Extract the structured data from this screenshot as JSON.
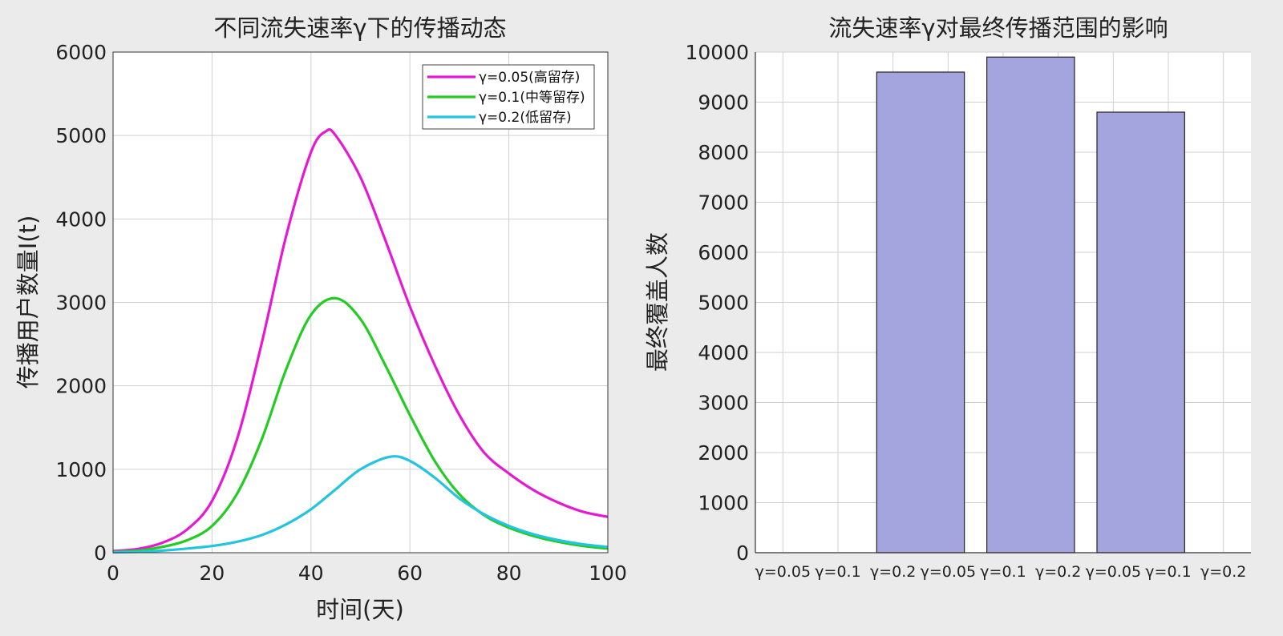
{
  "chart_data": [
    {
      "type": "line",
      "title": "不同流失速率γ下的传播动态",
      "xlabel": "时间(天)",
      "ylabel": "传播用户数量I(t)",
      "xlim": [
        0,
        100
      ],
      "ylim": [
        0,
        6000
      ],
      "xticks": [
        "0",
        "20",
        "40",
        "60",
        "80",
        "100"
      ],
      "yticks": [
        "0",
        "1000",
        "2000",
        "3000",
        "4000",
        "5000",
        "6000"
      ],
      "grid": true,
      "legend_position": "top-right",
      "series": [
        {
          "name": "γ=0.05(高留存)",
          "color": "#e619d2",
          "x": [
            0,
            5,
            10,
            15,
            20,
            25,
            30,
            35,
            40,
            43,
            45,
            50,
            55,
            60,
            65,
            70,
            75,
            80,
            85,
            90,
            95,
            100
          ],
          "y": [
            20,
            45,
            120,
            280,
            620,
            1350,
            2500,
            3800,
            4800,
            5050,
            5000,
            4500,
            3750,
            2950,
            2250,
            1650,
            1200,
            950,
            750,
            600,
            490,
            430
          ]
        },
        {
          "name": "γ=0.1(中等留存)",
          "color": "#22cc22",
          "x": [
            0,
            5,
            10,
            15,
            20,
            25,
            30,
            35,
            40,
            45,
            50,
            55,
            60,
            65,
            70,
            75,
            80,
            85,
            90,
            95,
            100
          ],
          "y": [
            10,
            25,
            70,
            150,
            320,
            700,
            1350,
            2200,
            2850,
            3050,
            2800,
            2250,
            1650,
            1100,
            700,
            450,
            300,
            200,
            130,
            80,
            50
          ]
        },
        {
          "name": "γ=0.2(低留存)",
          "color": "#22c4e0",
          "x": [
            0,
            5,
            10,
            15,
            20,
            25,
            30,
            35,
            40,
            45,
            50,
            56,
            60,
            65,
            70,
            75,
            80,
            85,
            90,
            95,
            100
          ],
          "y": [
            5,
            10,
            25,
            50,
            80,
            130,
            210,
            340,
            520,
            760,
            1000,
            1150,
            1100,
            900,
            650,
            460,
            320,
            220,
            150,
            100,
            70
          ]
        }
      ]
    },
    {
      "type": "bar",
      "title": "流失速率γ对最终传播范围的影响",
      "xlabel": "",
      "ylabel": "最终覆盖人数",
      "ylim": [
        0,
        10000
      ],
      "yticks": [
        "0",
        "1000",
        "2000",
        "3000",
        "4000",
        "5000",
        "6000",
        "7000",
        "8000",
        "9000",
        "10000"
      ],
      "grid": true,
      "categories": [
        "γ=0.05",
        "γ=0.1",
        "γ=0.2",
        "γ=0.05",
        "γ=0.1",
        "γ=0.2",
        "γ=0.05",
        "γ=0.1",
        "γ=0.2"
      ],
      "bars": [
        {
          "start": 1.5,
          "end": 3.5,
          "value": 9600
        },
        {
          "start": 3.5,
          "end": 5.5,
          "value": 9900
        },
        {
          "start": 5.5,
          "end": 7.5,
          "value": 8800
        }
      ],
      "bar_color": "#a4a4df"
    }
  ]
}
